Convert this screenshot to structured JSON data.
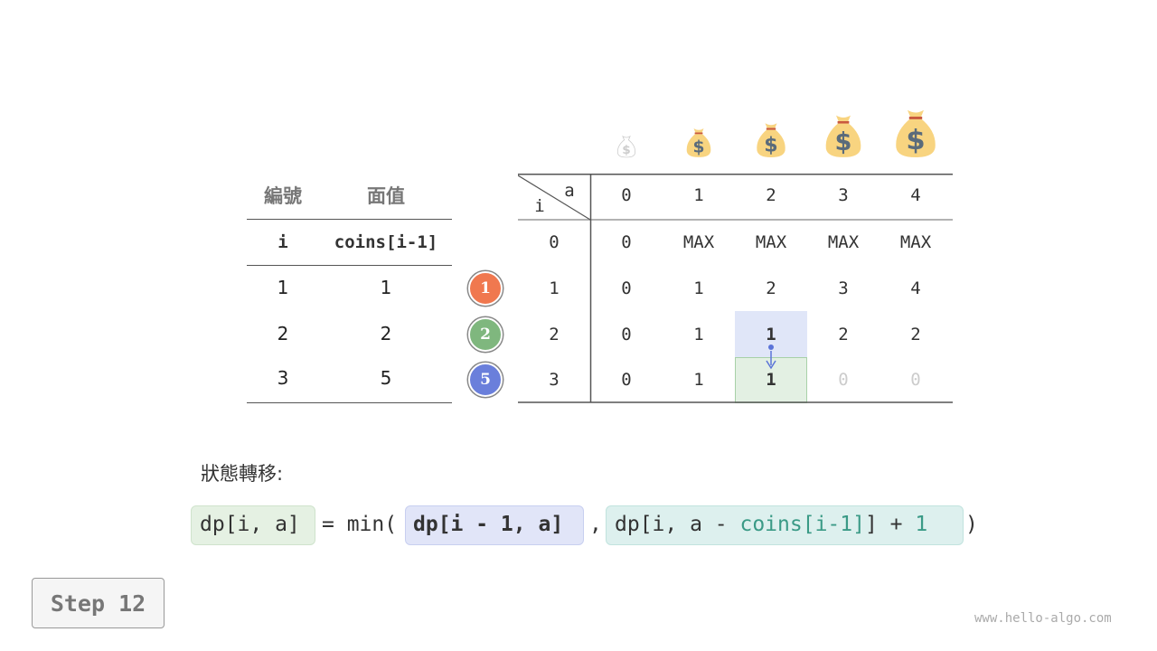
{
  "coin_table": {
    "headers": [
      "編號",
      "面值"
    ],
    "subheaders": [
      "i",
      "coins[i-1]"
    ],
    "rows": [
      [
        "1",
        "1"
      ],
      [
        "2",
        "2"
      ],
      [
        "3",
        "5"
      ]
    ]
  },
  "coins": [
    {
      "label": "1",
      "color": "#f0784f"
    },
    {
      "label": "2",
      "color": "#7fb77e"
    },
    {
      "label": "5",
      "color": "#6a7fdb"
    }
  ],
  "dp_table": {
    "corner_col": "a",
    "corner_row": "i",
    "col_headers": [
      "0",
      "1",
      "2",
      "3",
      "4"
    ],
    "row_headers": [
      "0",
      "1",
      "2",
      "3"
    ],
    "rows": [
      [
        "0",
        "MAX",
        "MAX",
        "MAX",
        "MAX"
      ],
      [
        "0",
        "1",
        "2",
        "3",
        "4"
      ],
      [
        "0",
        "1",
        "1",
        "2",
        "2"
      ],
      [
        "0",
        "1",
        "1",
        "0",
        "0"
      ]
    ],
    "highlight_source": {
      "row": 2,
      "col": 2,
      "color": "#e0e6f8"
    },
    "highlight_target": {
      "row": 3,
      "col": 2,
      "color": "#e3f0e3"
    }
  },
  "transition_label": "狀態轉移:",
  "formula": {
    "lhs": "dp[i, a]",
    "eq": "= min(",
    "arg1": "dp[i - 1, a]",
    "comma": ",",
    "arg2_a": "dp[i, a - ",
    "arg2_b": "coins[i-1]",
    "arg2_c": "] + ",
    "arg2_d": "1",
    "close": ")"
  },
  "step_label": "Step 12",
  "watermark": "www.hello-algo.com"
}
